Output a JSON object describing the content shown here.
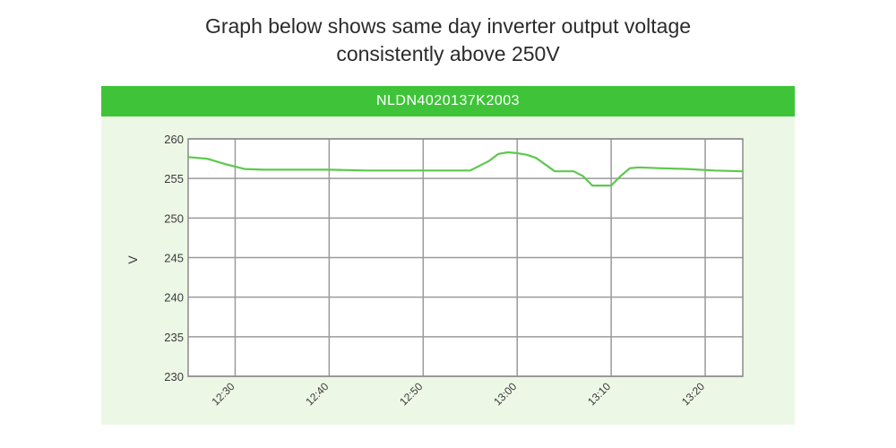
{
  "caption": {
    "line1": "Graph below shows same day inverter output voltage",
    "line2": "consistently above 250V"
  },
  "chart_data": {
    "type": "line",
    "title": "NLDN4020137K2003",
    "ylabel": "V",
    "xlabel": "",
    "ylim": [
      230,
      260
    ],
    "yticks": [
      260,
      255,
      250,
      245,
      240,
      235,
      230
    ],
    "xlim": [
      "12:25",
      "13:24"
    ],
    "xticks": [
      "12:30",
      "12:40",
      "12:50",
      "13:00",
      "13:10",
      "13:20"
    ],
    "grid": true,
    "colors": {
      "line": "#5cc94c",
      "header": "#3fc439",
      "plot_bg": "#ffffff",
      "panel_bg": "#edf7e6",
      "grid": "#9a9a9a"
    },
    "series": [
      {
        "x": [
          "12:25",
          "12:27",
          "12:29",
          "12:31",
          "12:33",
          "12:36",
          "12:40",
          "12:44",
          "12:48",
          "12:52",
          "12:55",
          "12:57",
          "12:58",
          "12:59",
          "13:00",
          "13:01",
          "13:02",
          "13:04",
          "13:05",
          "13:06",
          "13:07",
          "13:08",
          "13:09",
          "13:10",
          "13:11",
          "13:12",
          "13:13",
          "13:15",
          "13:18",
          "13:21",
          "13:24"
        ],
        "values": [
          257.7,
          257.5,
          256.8,
          256.2,
          256.1,
          256.1,
          256.1,
          256.0,
          256.0,
          256.0,
          256.0,
          257.2,
          258.1,
          258.3,
          258.2,
          258.0,
          257.6,
          255.9,
          255.9,
          255.9,
          255.3,
          254.1,
          254.1,
          254.1,
          255.3,
          256.3,
          256.4,
          256.3,
          256.2,
          256.0,
          255.9
        ]
      }
    ]
  }
}
